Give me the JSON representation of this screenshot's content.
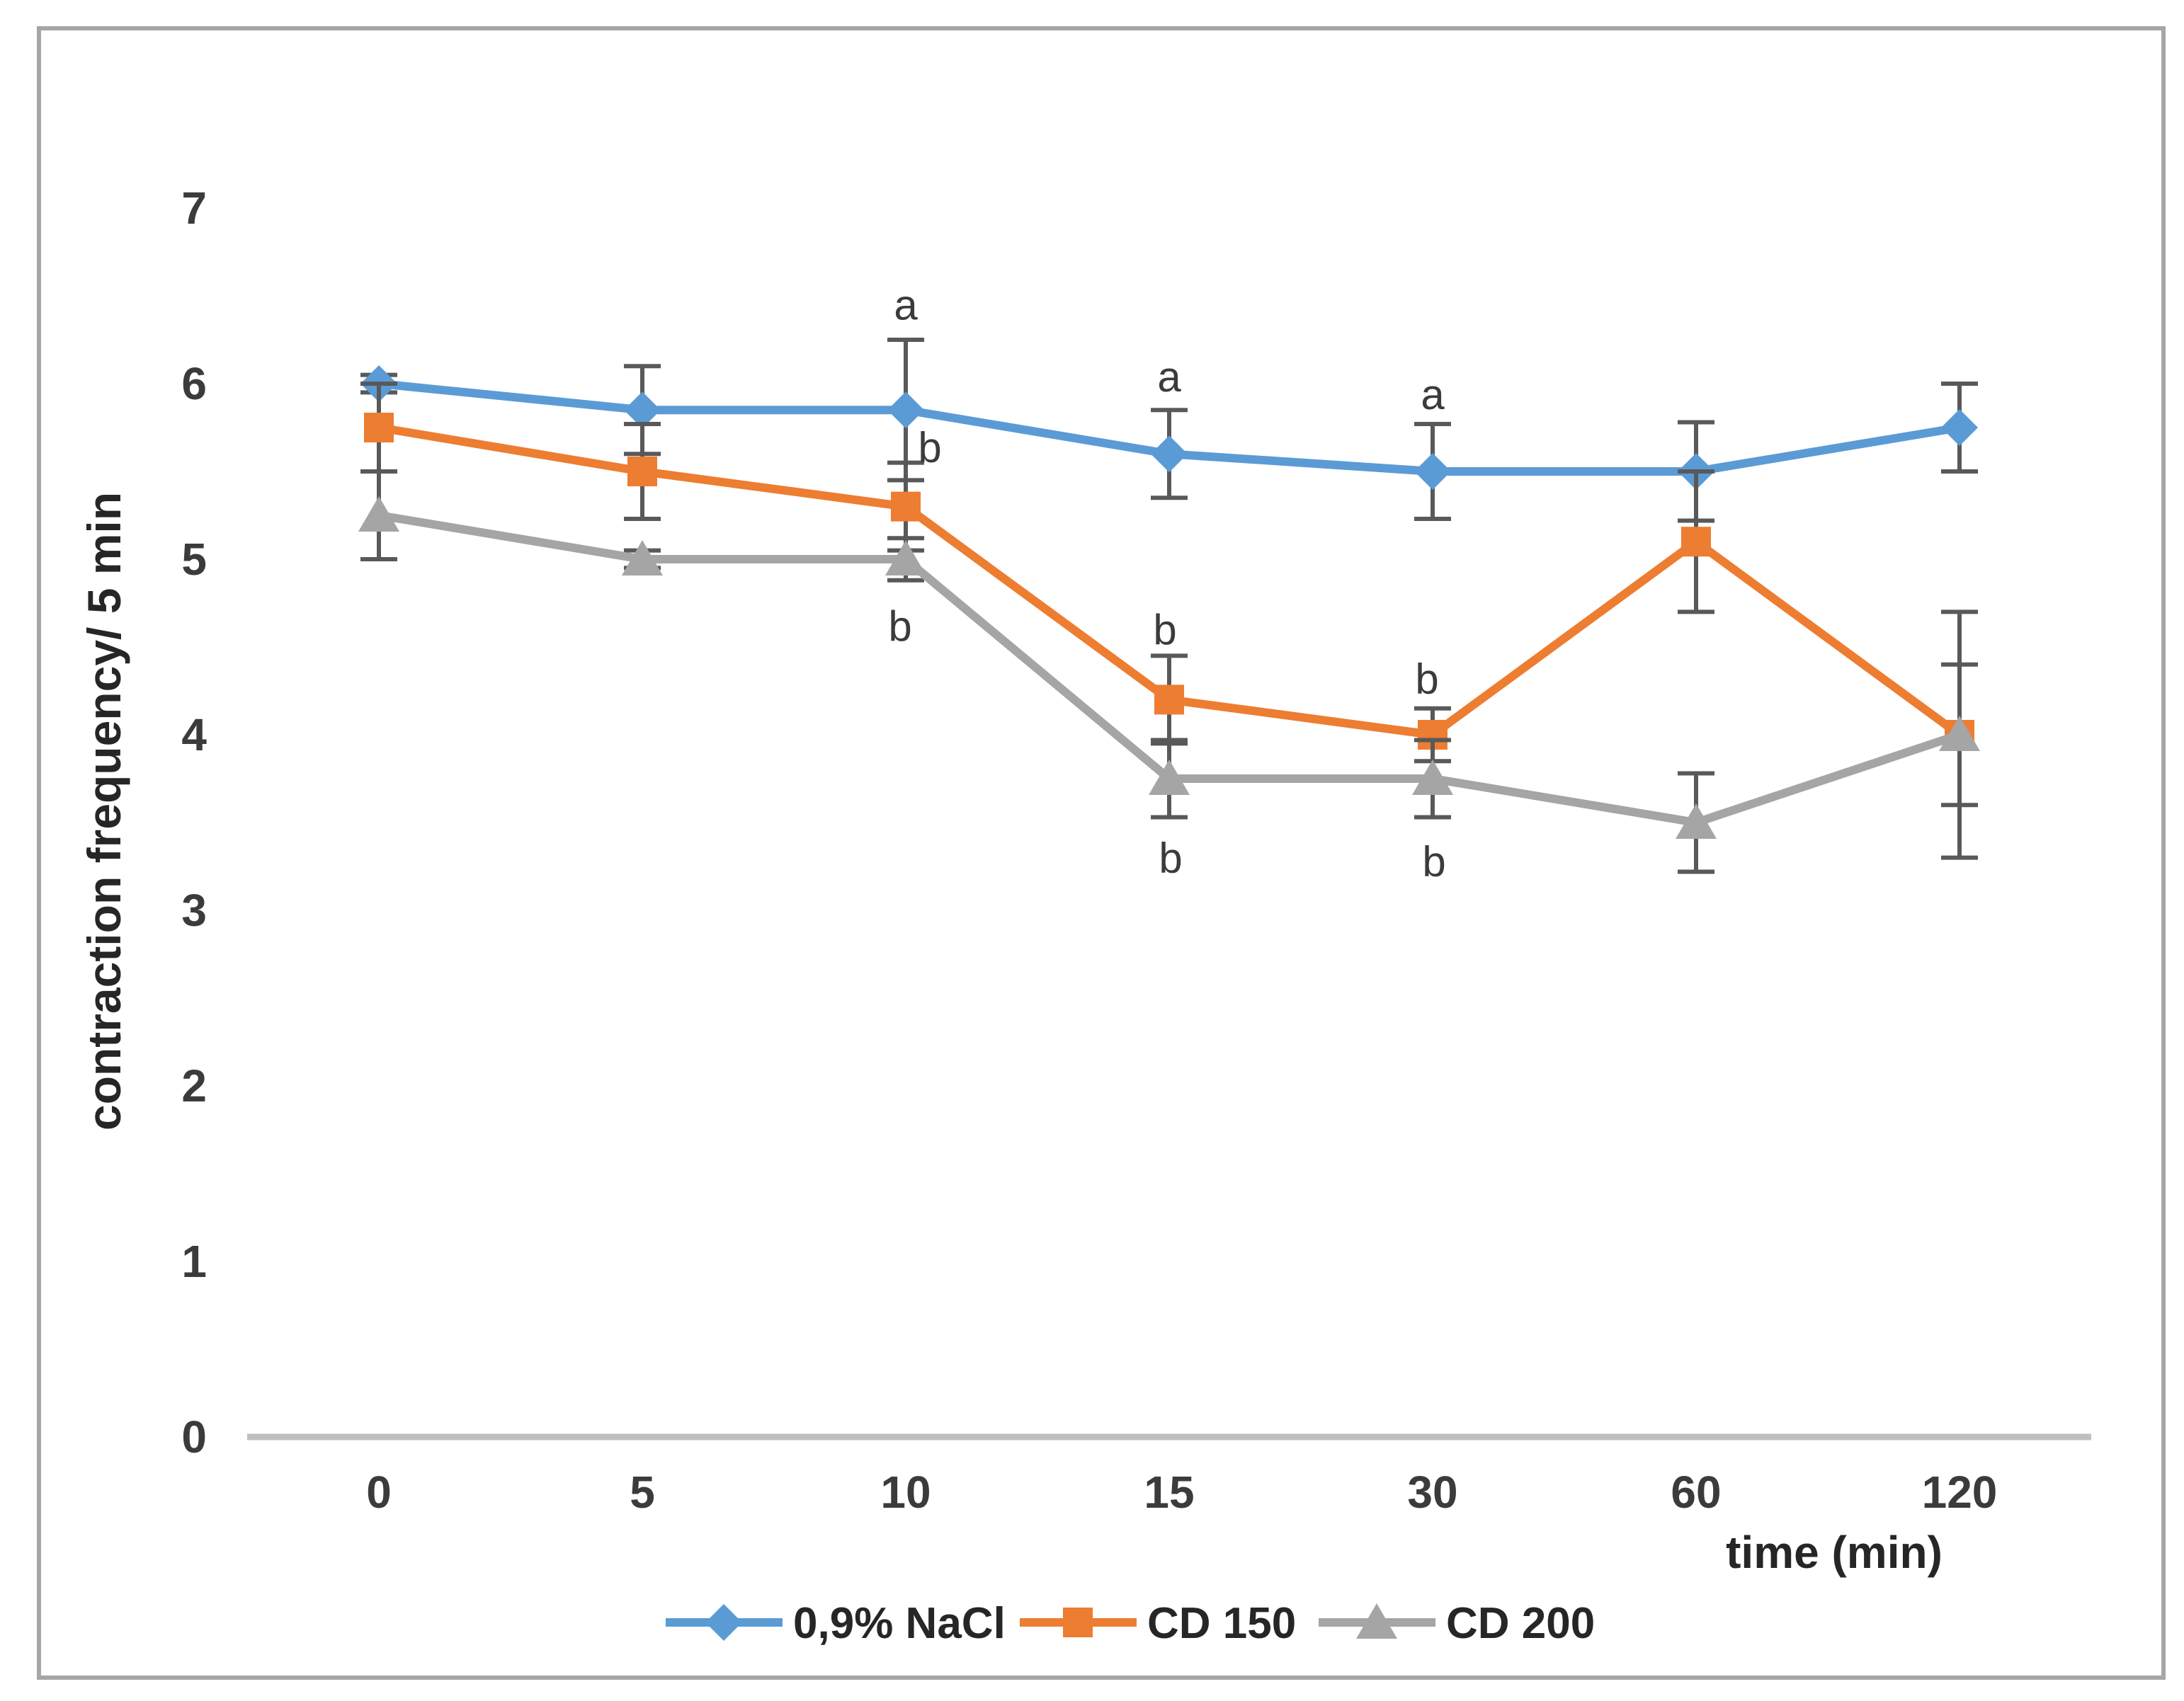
{
  "figure": {
    "background": "#FFFFFF",
    "border_color": "#A6A6A6"
  },
  "chart_data": {
    "type": "line",
    "title": "",
    "xlabel": "time (min)",
    "ylabel": "contraction frequency/ 5 min",
    "categories": [
      "0",
      "5",
      "10",
      "15",
      "30",
      "60",
      "120"
    ],
    "yticks": [
      "0",
      "1",
      "2",
      "3",
      "4",
      "5",
      "6",
      "7"
    ],
    "ylim": [
      0,
      7
    ],
    "grid": false,
    "legend_position": "bottom-center",
    "series": [
      {
        "name": "0,9% NaCl",
        "color": "#5B9BD5",
        "marker": "diamond",
        "values": [
          6.0,
          5.85,
          5.85,
          5.6,
          5.5,
          5.5,
          5.75
        ],
        "errors": [
          0.05,
          0.25,
          0.4,
          0.25,
          0.27,
          0.28,
          0.25
        ]
      },
      {
        "name": "CD 150",
        "color": "#ED7D31",
        "marker": "square",
        "values": [
          5.75,
          5.5,
          5.3,
          4.2,
          4.0,
          5.1,
          4.0
        ],
        "errors": [
          0.25,
          0.27,
          0.25,
          0.25,
          0.15,
          0.4,
          0.4
        ]
      },
      {
        "name": "CD 200",
        "color": "#A5A5A5",
        "marker": "triangle",
        "values": [
          5.25,
          5.0,
          5.0,
          3.75,
          3.75,
          3.5,
          4.0
        ],
        "errors": [
          0.25,
          0.05,
          0.12,
          0.22,
          0.22,
          0.28,
          0.7
        ]
      }
    ],
    "annotations": [
      {
        "text": "a",
        "category_index": 2,
        "y": 6.45,
        "dx": 0
      },
      {
        "text": "b",
        "category_index": 2,
        "y": 5.64,
        "dx": 34
      },
      {
        "text": "b",
        "category_index": 2,
        "y": 4.62,
        "dx": -8
      },
      {
        "text": "a",
        "category_index": 3,
        "y": 6.04,
        "dx": 0
      },
      {
        "text": "b",
        "category_index": 3,
        "y": 4.6,
        "dx": -6
      },
      {
        "text": "b",
        "category_index": 3,
        "y": 3.3,
        "dx": 2
      },
      {
        "text": "a",
        "category_index": 4,
        "y": 5.94,
        "dx": 0
      },
      {
        "text": "b",
        "category_index": 4,
        "y": 4.32,
        "dx": -8
      },
      {
        "text": "b",
        "category_index": 4,
        "y": 3.28,
        "dx": 2
      }
    ],
    "colors": {
      "axis_line": "#BFBFBF",
      "error_bar": "#595959",
      "tick_text": "#3B3B3B",
      "label_text": "#262626",
      "annotation_text": "#3B3B3B"
    }
  }
}
